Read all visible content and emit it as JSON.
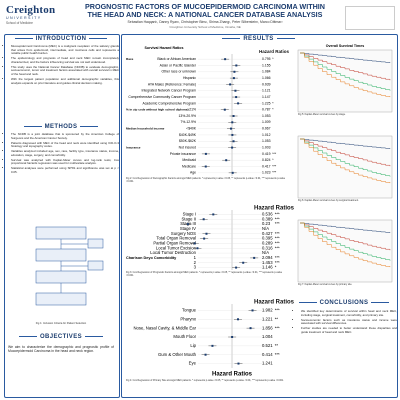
{
  "header": {
    "logo": "Creighton",
    "logo_sub": "UNIVERSITY",
    "school": "School of Medicine",
    "title": "PROGNOSTIC FACTORS OF MUCOEPIDERMOID CARCINOMA WITHIN THE HEAD AND NECK: A NATIONAL CANCER DATABASE ANALYSIS",
    "authors": "Sebastian Haqqani¹, Danny Ryan¹, Christopher Bins¹, Shima Zhang¹, Peter Silberstein², Marco Dittmar²",
    "affiliation": "¹Creighton University School of Medicine, Omaha, NE"
  },
  "introduction": {
    "heading": "INTRODUCTION",
    "bullets": [
      "Mucoepidermoid Carcinoma (MEC) is a malignant neoplasm of the salivary glands that arises from epidermoid, intermediate, and mucinous cells and represents a notable public health burden.",
      "The epidemiology and prognosis of head and neck MEC remain incompletely characterized, and the factors influencing survival are not well understood.",
      "This study uses the National Cancer Database (NCDB) to evaluate demographic, socioeconomic, tumor and treatment factors associated with overall survival in MEC of the head and neck.",
      "With the largest patient population and additional demographic variables, this analysis expands on prior literature and guides clinical decision making."
    ]
  },
  "methods": {
    "heading": "METHODS",
    "bullets": [
      "The NCDB is a joint database that is sponsored by the American College of Surgeons and the American Cancer Society.",
      "Patients diagnosed with MEC of the head and neck were identified using ICD-O-3 histology and topography codes.",
      "Variables analyzed included age, sex, race, facility type, insurance status, income, education, stage, surgery, and comorbidity.",
      "Survival was analyzed with Kaplan-Meier curves and log-rank tests; Cox proportional hazards regression was used for multivariate analysis.",
      "Statistical analyses were performed using SPSS and significance was set at p < 0.05."
    ],
    "figure_caption": "Fig 1: Inclusion Criteria for Patient Selection"
  },
  "objectives": {
    "heading": "OBJECTIVES",
    "text": "We aim to characterize the demographic and prognostic profile of Mucoepidermoid Carcinoma in the head and neck region."
  },
  "results": {
    "heading": "RESULTS"
  },
  "conclusions": {
    "heading": "CONCLUSIONS",
    "bullets": [
      "We identified key determinants of survival within head and neck MEC, including stage, surgical treatment, comorbidity, and primary site.",
      "Socioeconomic factors such as insurance status and income were associated with survival differences.",
      "Further studies are needed to better understand these disparities and guide treatment of head and neck MEC."
    ]
  },
  "forest_plots": [
    {
      "title": "Survival Hazard Ratios",
      "header": "Hazard Ratios",
      "rows": [
        {
          "group": "Race",
          "label": "Black or African American",
          "value": 0.795,
          "stars": "*"
        },
        {
          "label": "Asian or Pacific Islander",
          "value": 1.155,
          "stars": ""
        },
        {
          "label": "Other race or unknown",
          "value": 1.084,
          "stars": ""
        },
        {
          "label": "Hispanic",
          "value": 1.066,
          "stars": ""
        },
        {
          "label": "AYA Males (Reference: Female)",
          "value": 0.939,
          "stars": ""
        },
        {
          "label": "Integrated Network Cancer Program",
          "value": 1.121,
          "stars": ""
        },
        {
          "label": "Comprehensive Community Cancer Program",
          "value": 1.147,
          "stars": ""
        },
        {
          "label": "Academic Comprehensive Program",
          "value": 1.225,
          "stars": "*"
        },
        {
          "group": "% in zip code without high school diploma",
          "label": "≥21%",
          "value": 0.787,
          "stars": "*"
        },
        {
          "label": "13%-20.9%",
          "value": 1.053,
          "stars": ""
        },
        {
          "label": "7%-12.9%",
          "value": 1.009,
          "stars": ""
        },
        {
          "group": "Median household income",
          "label": "<$40K",
          "value": 0.967,
          "stars": ""
        },
        {
          "label": "$40K-$49K",
          "value": 1.012,
          "stars": ""
        },
        {
          "label": "$50K-$62K",
          "value": 1.053,
          "stars": ""
        },
        {
          "group": "Insurance",
          "label": "Not insured",
          "value": 1.003,
          "stars": ""
        },
        {
          "label": "Private insurance",
          "value": 0.419,
          "stars": "***"
        },
        {
          "label": "Medicaid",
          "value": 0.824,
          "stars": "*"
        },
        {
          "label": "Medicare",
          "value": 0.417,
          "stars": "***"
        },
        {
          "label": "Age",
          "value": 1.023,
          "stars": "***"
        }
      ],
      "caption": "Fig 2: Cox Regression of Demographic Factors amongst MEC patients. * represents p-value <0.05, ** represents p-value <0.01, *** represents p-value <0.001."
    },
    {
      "title": "",
      "header": "Hazard Ratios",
      "rows": [
        {
          "label": "Stage I",
          "value": 0.536,
          "stars": "***"
        },
        {
          "label": "Stage II",
          "value": 0.389,
          "stars": "***"
        },
        {
          "label": "Stage III",
          "value": 0.23,
          "stars": "***"
        },
        {
          "label": "Stage IV",
          "value": "N/A",
          "stars": ""
        },
        {
          "label": "Surgery NOS",
          "value": 0.427,
          "stars": "***"
        },
        {
          "label": "Total Organ Removal",
          "value": 0.395,
          "stars": "***"
        },
        {
          "label": "Partial Organ Removal",
          "value": 0.289,
          "stars": "***"
        },
        {
          "label": "Local Tumor Excision",
          "value": 0.316,
          "stars": "***"
        },
        {
          "label": "Local Tumor Destruction",
          "value": "N/A",
          "stars": ""
        },
        {
          "group": "Charlson Deyo Comorbidity",
          "label": "1",
          "value": 2.094,
          "stars": "***"
        },
        {
          "label": "2",
          "value": 1.453,
          "stars": "***"
        },
        {
          "label": "3",
          "value": 1.146,
          "stars": "*"
        }
      ],
      "caption": "Fig 3: Cox Regression of Prognostic Factors amongst MEC patients. * represents p-value <0.05, ** represents p-value <0.01, *** represents p-value <0.001."
    },
    {
      "title": "",
      "header": "Hazard Ratios",
      "rows": [
        {
          "label": "Tongue",
          "value": 1.982,
          "stars": "***"
        },
        {
          "label": "Pharynx",
          "value": 1.221,
          "stars": "**"
        },
        {
          "label": "Nose, Nasal Cavity, & Middle Ear",
          "value": 1.856,
          "stars": "***"
        },
        {
          "label": "Mouth Floor",
          "value": 1.004,
          "stars": ""
        },
        {
          "label": "Lip",
          "value": 0.521,
          "stars": "**"
        },
        {
          "label": "Gum & Other Mouth",
          "value": 0.414,
          "stars": "***"
        },
        {
          "label": "Eye",
          "value": 1.241,
          "stars": ""
        }
      ],
      "axis_label": "Hazard Ratios",
      "caption": "Fig 4: Cox Regression of Primary Site amongst MEC patients. * represents p-value <0.05, ** represents p-value <0.01, *** represents p-value <0.001."
    }
  ],
  "km_plots": [
    {
      "title": "Overall Survival Times",
      "caption": "Fig 5: Kaplan-Meier survival curves by stage."
    },
    {
      "title": "",
      "caption": "Fig 6: Kaplan-Meier survival curves by surgical treatment."
    },
    {
      "title": "",
      "caption": "Fig 7: Kaplan-Meier survival curves by primary site."
    }
  ]
}
